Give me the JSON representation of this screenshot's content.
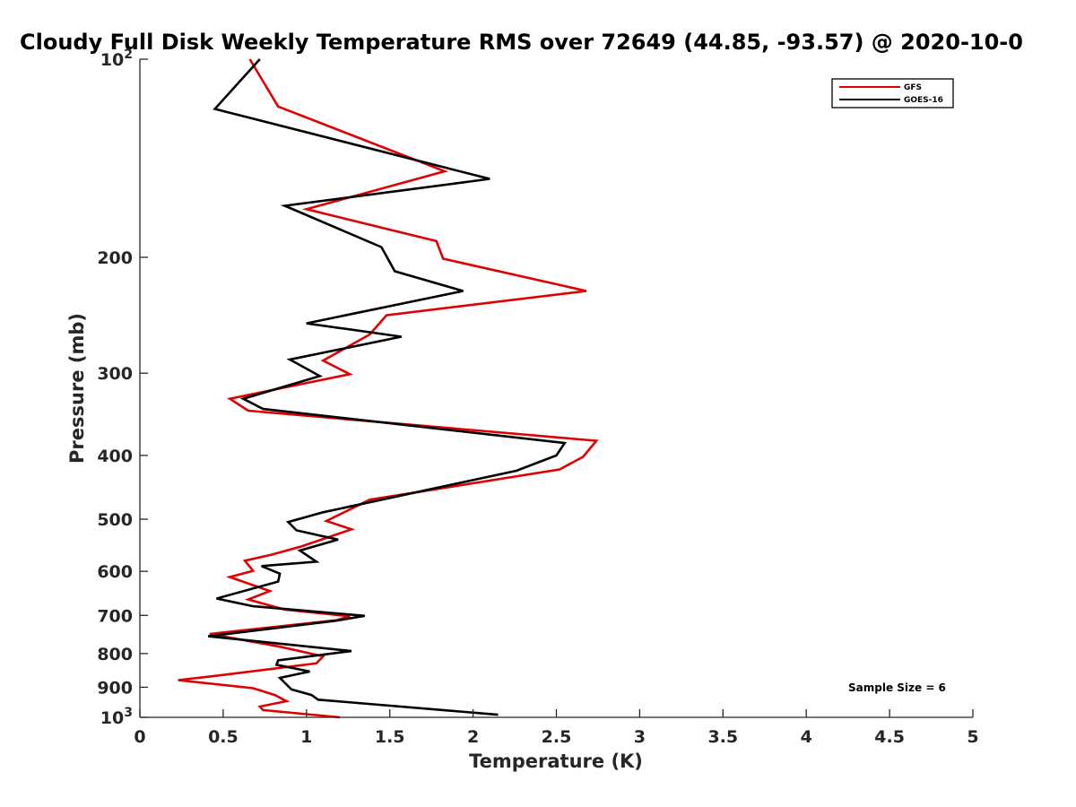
{
  "chart_data": {
    "type": "line",
    "title": "Cloudy Full Disk Weekly Temperature RMS over 72649 (44.85, -93.57) @ 2020-10-0",
    "xlabel": "Temperature (K)",
    "ylabel": "Pressure (mb)",
    "xlim": [
      0,
      5
    ],
    "ylim": [
      1000,
      100
    ],
    "yscale": "log",
    "y_reversed": true,
    "grid": false,
    "legend_position": "top-right",
    "x_ticks": [
      0,
      0.5,
      1,
      1.5,
      2,
      2.5,
      3,
      3.5,
      4,
      4.5,
      5
    ],
    "x_tick_labels": [
      "0",
      "0.5",
      "1",
      "1.5",
      "2",
      "2.5",
      "3",
      "3.5",
      "4",
      "4.5",
      "5"
    ],
    "y_ticks": [
      100,
      200,
      300,
      400,
      500,
      600,
      700,
      800,
      900,
      1000
    ],
    "y_tick_labels": [
      {
        "base": "10",
        "exp": "2"
      },
      {
        "base": "200",
        "exp": ""
      },
      {
        "base": "300",
        "exp": ""
      },
      {
        "base": "400",
        "exp": ""
      },
      {
        "base": "500",
        "exp": ""
      },
      {
        "base": "600",
        "exp": ""
      },
      {
        "base": "700",
        "exp": ""
      },
      {
        "base": "800",
        "exp": ""
      },
      {
        "base": "900",
        "exp": ""
      },
      {
        "base": "10",
        "exp": "3"
      }
    ],
    "series": [
      {
        "name": "GFS",
        "color": "#e00000",
        "points": [
          [
            0.66,
            100
          ],
          [
            0.83,
            118
          ],
          [
            1.83,
            148
          ],
          [
            1.0,
            169
          ],
          [
            1.78,
            189
          ],
          [
            1.82,
            201
          ],
          [
            2.68,
            225
          ],
          [
            1.48,
            245
          ],
          [
            1.38,
            262
          ],
          [
            1.1,
            287
          ],
          [
            1.26,
            301
          ],
          [
            0.54,
            328
          ],
          [
            0.65,
            342
          ],
          [
            2.74,
            380
          ],
          [
            2.66,
            402
          ],
          [
            2.52,
            420
          ],
          [
            1.38,
            467
          ],
          [
            1.12,
            503
          ],
          [
            1.27,
            518
          ],
          [
            0.97,
            550
          ],
          [
            0.79,
            566
          ],
          [
            0.63,
            578
          ],
          [
            0.68,
            599
          ],
          [
            0.54,
            612
          ],
          [
            0.78,
            643
          ],
          [
            0.65,
            662
          ],
          [
            0.87,
            686
          ],
          [
            1.26,
            702
          ],
          [
            1.18,
            712
          ],
          [
            0.42,
            747
          ],
          [
            0.84,
            781
          ],
          [
            1.1,
            808
          ],
          [
            1.06,
            828
          ],
          [
            0.44,
            866
          ],
          [
            0.23,
            878
          ],
          [
            0.68,
            903
          ],
          [
            0.81,
            925
          ],
          [
            0.88,
            945
          ],
          [
            0.72,
            963
          ],
          [
            0.74,
            975
          ],
          [
            1.2,
            1000
          ]
        ]
      },
      {
        "name": "GOES-16",
        "color": "#000000",
        "points": [
          [
            0.72,
            100
          ],
          [
            0.45,
            119
          ],
          [
            2.1,
            152
          ],
          [
            0.87,
            167
          ],
          [
            1.45,
            193
          ],
          [
            1.53,
            210
          ],
          [
            1.94,
            225
          ],
          [
            1.0,
            252
          ],
          [
            1.57,
            264
          ],
          [
            0.9,
            286
          ],
          [
            1.08,
            303
          ],
          [
            0.62,
            328
          ],
          [
            0.74,
            340
          ],
          [
            2.55,
            383
          ],
          [
            2.5,
            400
          ],
          [
            2.26,
            422
          ],
          [
            1.1,
            488
          ],
          [
            0.89,
            505
          ],
          [
            0.94,
            520
          ],
          [
            1.19,
            537
          ],
          [
            0.96,
            558
          ],
          [
            1.06,
            580
          ],
          [
            0.73,
            589
          ],
          [
            0.84,
            605
          ],
          [
            0.83,
            622
          ],
          [
            0.46,
            660
          ],
          [
            0.68,
            678
          ],
          [
            1.35,
            701
          ],
          [
            1.18,
            713
          ],
          [
            0.56,
            745
          ],
          [
            0.41,
            753
          ],
          [
            1.27,
            793
          ],
          [
            0.83,
            819
          ],
          [
            0.82,
            832
          ],
          [
            1.02,
            852
          ],
          [
            0.84,
            871
          ],
          [
            0.91,
            907
          ],
          [
            1.03,
            925
          ],
          [
            1.07,
            940
          ],
          [
            2.15,
            991
          ]
        ]
      }
    ],
    "legend": [
      "GFS",
      "GOES-16"
    ],
    "annotations": [
      {
        "text": "Sample Size = 6"
      }
    ]
  }
}
